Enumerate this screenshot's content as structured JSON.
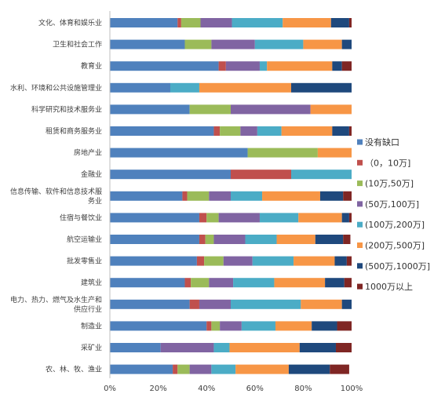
{
  "chart_data": {
    "type": "bar",
    "orientation": "horizontal",
    "stacked": true,
    "percent_stacked": true,
    "title": "",
    "xlabel": "",
    "ylabel": "",
    "xlim": [
      0,
      100
    ],
    "x_ticks": [
      "0%",
      "20%",
      "40%",
      "60%",
      "80%",
      "100%"
    ],
    "grid": false,
    "legend_position": "right",
    "categories": [
      [
        "文化、体育和娱乐业"
      ],
      [
        "卫生和社会工作"
      ],
      [
        "教育业"
      ],
      [
        "水利、环境和公共设施管理业"
      ],
      [
        "科学研究和技术服务业"
      ],
      [
        "租赁和商务服务业"
      ],
      [
        "房地产业"
      ],
      [
        "金融业"
      ],
      [
        "信息传输、软件和信息技术服",
        "务业"
      ],
      [
        "住宿与餐饮业"
      ],
      [
        "航空运输业"
      ],
      [
        "批发零售业"
      ],
      [
        "建筑业"
      ],
      [
        "电力、热力、燃气及水生产和",
        "供应行业"
      ],
      [
        "制造业"
      ],
      [
        "采矿业"
      ],
      [
        "农、林、牧、渔业"
      ]
    ],
    "series": [
      {
        "name": "没有缺口",
        "color": "#4F81BD",
        "values": [
          28,
          31,
          45,
          25,
          33,
          43,
          57,
          50,
          30,
          37,
          37,
          36,
          31,
          33,
          40,
          21,
          26
        ]
      },
      {
        "name": "（0，10万]",
        "color": "#C0504D",
        "values": [
          1.5,
          0,
          3,
          0,
          0,
          2.5,
          0,
          25,
          2,
          3,
          2.5,
          3,
          2.5,
          4,
          2,
          0,
          2
        ]
      },
      {
        "name": "(10万,50万]",
        "color": "#9BBB59",
        "values": [
          8,
          11,
          0,
          0,
          17,
          8.5,
          29,
          0,
          9,
          5,
          3.5,
          8,
          7.5,
          0,
          3.5,
          0,
          5
        ]
      },
      {
        "name": "(50万,100万]",
        "color": "#8064A2",
        "values": [
          13,
          18,
          14,
          0,
          33,
          7,
          0,
          0,
          9,
          17,
          13,
          12,
          10,
          13,
          9,
          22,
          9
        ]
      },
      {
        "name": "(100万,200万]",
        "color": "#4BACC6",
        "values": [
          21,
          20,
          3,
          12,
          0,
          10,
          0,
          25,
          13,
          16,
          13,
          17,
          17,
          29,
          14,
          6.5,
          10
        ]
      },
      {
        "name": "(200万,500万]",
        "color": "#F79646",
        "values": [
          20,
          16,
          27,
          38,
          17,
          21,
          14,
          0,
          24,
          18,
          16,
          17,
          21,
          17,
          15,
          29,
          22
        ]
      },
      {
        "name": "(500万,1000万]",
        "color": "#1F497D",
        "values": [
          7.5,
          4,
          4,
          25,
          0,
          7,
          0,
          0,
          9.5,
          3,
          11.5,
          5,
          8,
          4,
          10.5,
          15,
          17
        ]
      },
      {
        "name": "1000万以上",
        "color": "#7F2624",
        "values": [
          1.5,
          0,
          4,
          0,
          0,
          1,
          0,
          0,
          3.5,
          1,
          3,
          2,
          3,
          0,
          6,
          7,
          8
        ]
      }
    ]
  }
}
